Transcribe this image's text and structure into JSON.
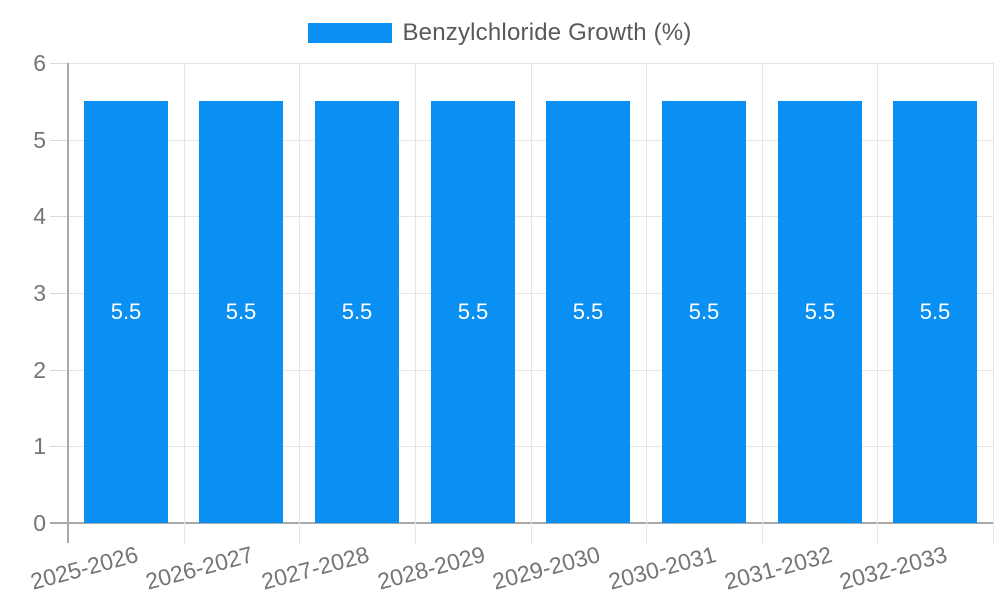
{
  "chart_data": {
    "type": "bar",
    "title": "",
    "xlabel": "",
    "ylabel": "",
    "legend": {
      "position": "top",
      "label": "Benzylchloride Growth (%)"
    },
    "categories": [
      "2025-2026",
      "2026-2027",
      "2027-2028",
      "2028-2029",
      "2029-2030",
      "2030-2031",
      "2031-2032",
      "2032-2033"
    ],
    "series": [
      {
        "name": "Benzylchloride Growth (%)",
        "values": [
          5.5,
          5.5,
          5.5,
          5.5,
          5.5,
          5.5,
          5.5,
          5.5
        ],
        "color": "#0a8ff2"
      }
    ],
    "ylim": [
      0,
      6
    ],
    "yticks": [
      0,
      1,
      2,
      3,
      4,
      5,
      6
    ],
    "grid": true
  },
  "colors": {
    "background": "#ffffff",
    "bar": "#0a8ff2",
    "gridline": "#e6e6e6",
    "tick": "#d9d9d9",
    "axis_line": "#a9a9a9",
    "tick_label": "#757575",
    "legend_text": "#58595b",
    "value_label": "#ffffff"
  }
}
